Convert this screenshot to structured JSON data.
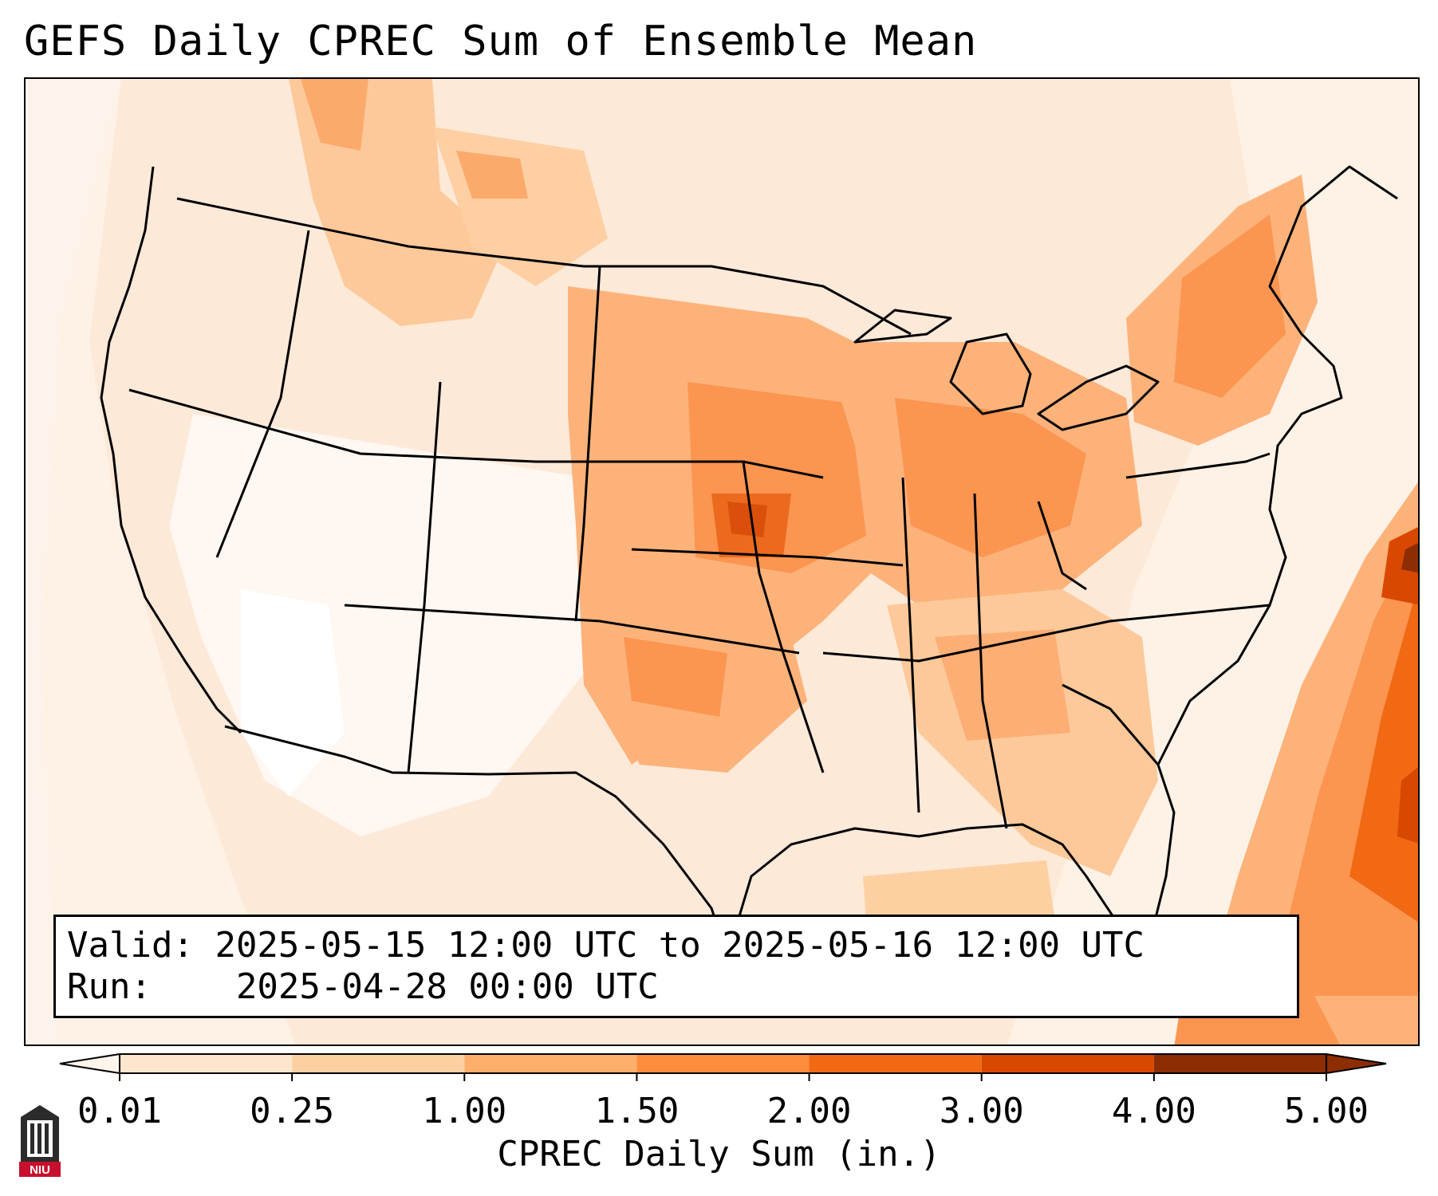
{
  "title": "GEFS Daily CPREC Sum of Ensemble Mean",
  "info": {
    "valid_label": "Valid:",
    "valid_value": "2025-05-15 12:00 UTC to 2025-05-16 12:00 UTC",
    "run_label": "Run:",
    "run_value": "2025-04-28 00:00 UTC"
  },
  "colorbar": {
    "title": "CPREC Daily Sum (in.)",
    "ticks": [
      "0.01",
      "0.25",
      "1.00",
      "1.50",
      "2.00",
      "3.00",
      "4.00",
      "5.00"
    ],
    "colors": [
      "#fff5eb",
      "#fee6ce",
      "#fdd0a2",
      "#fdae6b",
      "#fd8d3c",
      "#f16913",
      "#d94801",
      "#8c2d04"
    ],
    "extend": "both"
  },
  "map": {
    "domain": "CONUS",
    "background_color": "#fef1e6",
    "line_color": "#000000",
    "shading_levels": [
      "#fff5eb",
      "#feeddc",
      "#fee6ce",
      "#fdd0a2",
      "#fdae6b",
      "#fd8d3c",
      "#f16913",
      "#d94801",
      "#a63603"
    ]
  },
  "logo": {
    "text": "NIU",
    "color": "#c8102e"
  }
}
